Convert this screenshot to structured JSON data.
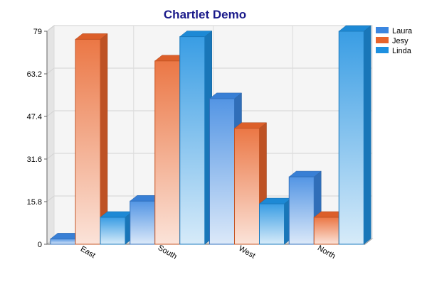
{
  "chart_data": {
    "type": "bar",
    "title": "Chartlet Demo",
    "categories": [
      "East",
      "South",
      "West",
      "North"
    ],
    "series": [
      {
        "name": "Laura",
        "values": [
          2,
          16,
          54,
          25
        ],
        "color": "#3b86e0"
      },
      {
        "name": "Jesy",
        "values": [
          76,
          68,
          43,
          10
        ],
        "color": "#e8642c"
      },
      {
        "name": "Linda",
        "values": [
          10,
          77,
          15,
          79
        ],
        "color": "#1e90e0"
      }
    ],
    "y_ticks": [
      "0",
      "15.8",
      "31.6",
      "47.4",
      "63.2",
      "79"
    ],
    "ylim": [
      0,
      79
    ],
    "xlabel": "",
    "ylabel": "",
    "grid": true,
    "style": "3d-gradient",
    "legend_position": "top-right"
  }
}
